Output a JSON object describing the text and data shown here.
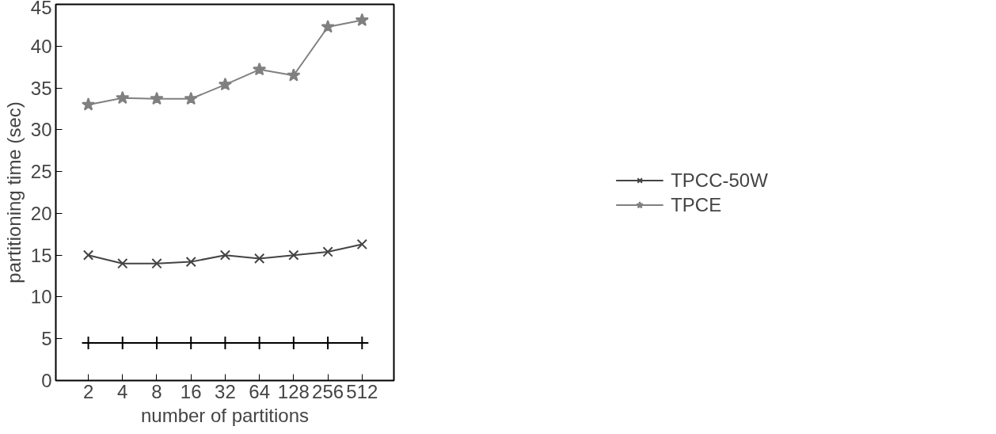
{
  "chart_data": {
    "type": "line",
    "xlabel": "number of partitions",
    "ylabel": "partitioning time (sec)",
    "categories": [
      "2",
      "4",
      "8",
      "16",
      "32",
      "64",
      "128",
      "256",
      "512"
    ],
    "ylim": [
      0,
      45
    ],
    "yticks": [
      0,
      5,
      10,
      15,
      20,
      25,
      30,
      35,
      40,
      45
    ],
    "grid": false,
    "legend": "right",
    "series": [
      {
        "color": "#000000",
        "marker": "cross",
        "values": [
          4.5,
          4.5,
          4.5,
          4.5,
          4.5,
          4.5,
          4.5,
          4.5,
          4.5
        ]
      },
      {
        "name": "TPCC-50W",
        "color": "#444444",
        "marker": "x",
        "values": [
          15,
          14,
          14,
          14.2,
          15,
          14.6,
          15,
          15.4,
          16.3
        ]
      },
      {
        "name": "TPCE",
        "color": "#808080",
        "marker": "star",
        "values": [
          33,
          33.8,
          33.7,
          33.7,
          35.4,
          37.2,
          36.5,
          42.3,
          43.1
        ]
      }
    ]
  }
}
